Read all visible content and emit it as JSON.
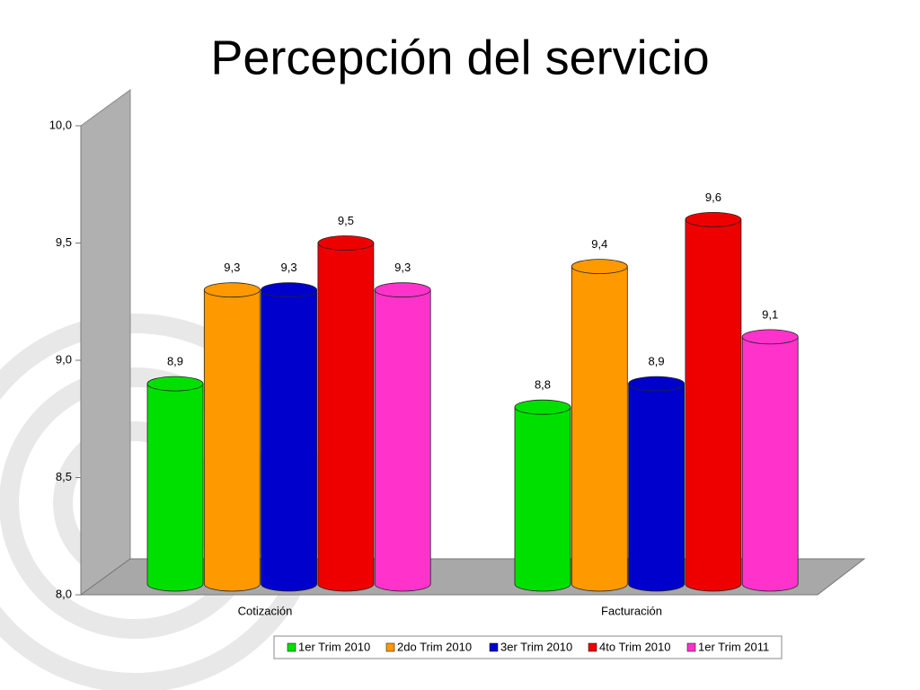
{
  "chart_data": {
    "type": "bar",
    "title": "Percepción del servicio",
    "categories": [
      "Cotización",
      "Facturación"
    ],
    "series": [
      {
        "name": "1er Trim 2010",
        "color": "#00e000",
        "values": [
          8.9,
          8.8
        ],
        "value_labels": [
          "8,9",
          "8,8"
        ]
      },
      {
        "name": "2do Trim 2010",
        "color": "#ff9900",
        "values": [
          9.3,
          9.4
        ],
        "value_labels": [
          "9,3",
          "9,4"
        ]
      },
      {
        "name": "3er Trim 2010",
        "color": "#0000cc",
        "values": [
          9.3,
          8.9
        ],
        "value_labels": [
          "9,3",
          "8,9"
        ]
      },
      {
        "name": "4to Trim 2010",
        "color": "#ee0000",
        "values": [
          9.5,
          9.6
        ],
        "value_labels": [
          "9,5",
          "9,6"
        ]
      },
      {
        "name": "1er Trim 2011",
        "color": "#ff33cc",
        "values": [
          9.3,
          9.1
        ],
        "value_labels": [
          "9,3",
          "9,1"
        ]
      }
    ],
    "ylim": [
      8,
      10
    ],
    "yticks": [
      {
        "value": 8,
        "label": "8,0"
      },
      {
        "value": 8.5,
        "label": "8,5"
      },
      {
        "value": 9,
        "label": "9,0"
      },
      {
        "value": 9.5,
        "label": "9,5"
      },
      {
        "value": 10,
        "label": "10,0"
      }
    ],
    "legend": "bottom"
  }
}
